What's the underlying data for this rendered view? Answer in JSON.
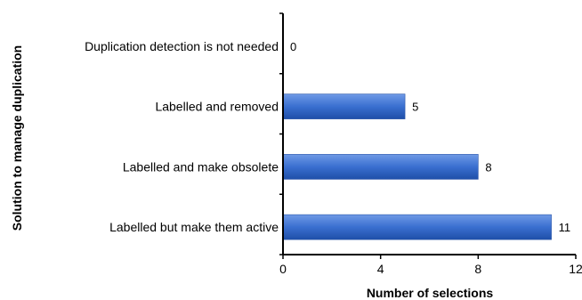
{
  "chart_data": {
    "type": "bar",
    "orientation": "horizontal",
    "title": "",
    "xlabel": "Number of selections",
    "ylabel": "Solution to manage duplication",
    "categories": [
      "Duplication detection is not needed",
      "Labelled and removed",
      "Labelled and make obsolete",
      "Labelled but make them active"
    ],
    "values": [
      0,
      5,
      8,
      11
    ],
    "data_labels": [
      "0",
      "5",
      "8",
      "11"
    ],
    "xlim": [
      0,
      12
    ],
    "xticks": [
      0,
      4,
      8,
      12
    ],
    "xtick_labels": [
      "0",
      "4",
      "8",
      "12"
    ],
    "grid": false,
    "legend": "none",
    "bar_color": "#3a6fd0"
  }
}
